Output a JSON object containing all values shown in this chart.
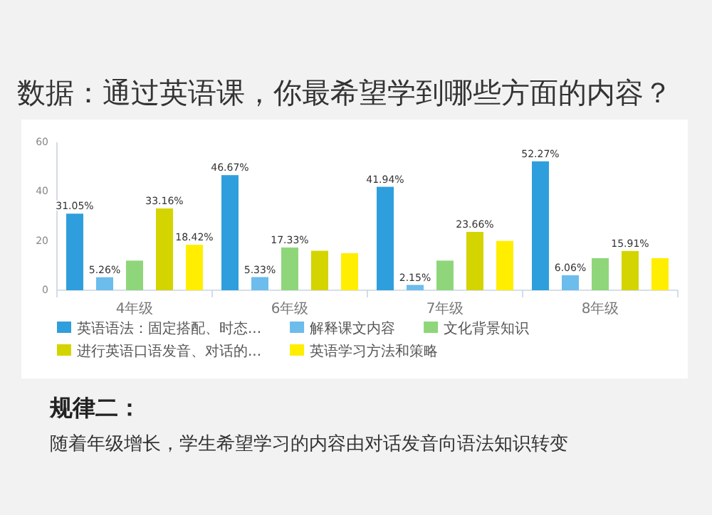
{
  "chart_data": {
    "type": "bar",
    "title": "数据：通过英语课，你最希望学到哪些方面的内容？",
    "categories": [
      "4年级",
      "6年级",
      "7年级",
      "8年级"
    ],
    "series": [
      {
        "name": "英语语法：固定搭配、时态...",
        "color": "#2e9fdc",
        "values": [
          31.05,
          46.67,
          41.94,
          52.27
        ],
        "value_labels": [
          "31.05%",
          "46.67%",
          "41.94%",
          "52.27%"
        ]
      },
      {
        "name": "解释课文内容",
        "color": "#6cbcec",
        "values": [
          5.26,
          5.33,
          2.15,
          6.06
        ],
        "value_labels": [
          "5.26%",
          "5.33%",
          "2.15%",
          "6.06%"
        ]
      },
      {
        "name": "文化背景知识",
        "color": "#8fd67a",
        "values": [
          12,
          17.33,
          12,
          13
        ],
        "value_labels": [
          null,
          "17.33%",
          null,
          null
        ]
      },
      {
        "name": "进行英语口语发音、对话的...",
        "color": "#d4d400",
        "values": [
          33.16,
          16,
          23.66,
          15.91
        ],
        "value_labels": [
          "33.16%",
          null,
          "23.66%",
          "15.91%"
        ]
      },
      {
        "name": "英语学习方法和策略",
        "color": "#ffee00",
        "values": [
          18.42,
          15,
          20,
          13
        ],
        "value_labels": [
          "18.42%",
          null,
          null,
          null
        ]
      }
    ],
    "ylim": [
      0,
      60
    ],
    "yticks": [
      0,
      20,
      40,
      60
    ],
    "grid": false,
    "legend": "bottom",
    "annotations": [
      "规律二：",
      "随着年级增长，学生希望学习的内容由对话发音向语法知识转变"
    ]
  }
}
